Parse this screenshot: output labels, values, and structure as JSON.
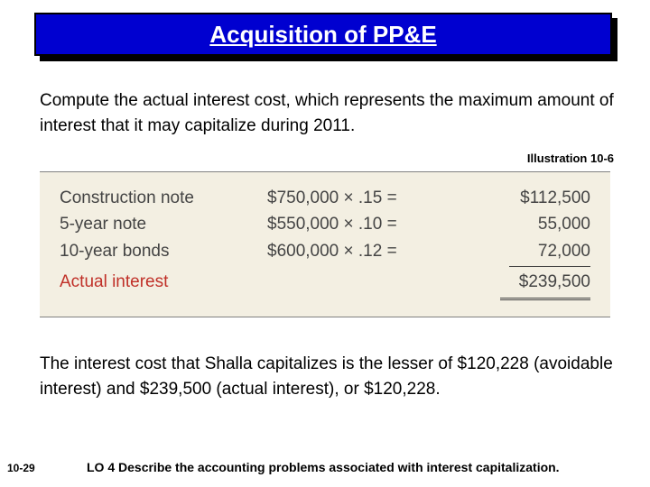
{
  "title": "Acquisition of PP&E",
  "intro": "Compute the actual interest cost, which represents the maximum amount of interest that it may capitalize during 2011.",
  "illustration_label": "Illustration 10-6",
  "table": {
    "background_color": "#f3efe2",
    "text_color": "#444444",
    "accent_color": "#c03028",
    "rows": [
      {
        "label": "Construction note",
        "calc": "$750,000 × .15 =",
        "result": "$112,500"
      },
      {
        "label": "5-year note",
        "calc": "$550,000 × .10 =",
        "result": "55,000"
      },
      {
        "label": "10-year bonds",
        "calc": "$600,000 × .12 =",
        "result": "72,000"
      }
    ],
    "total_label": "Actual interest",
    "total_value": "$239,500"
  },
  "conclusion": "The interest cost that Shalla capitalizes is the lesser of $120,228 (avoidable interest) and $239,500 (actual interest), or $120,228.",
  "footer": {
    "page_ref": "10-29",
    "learning_obj": "LO 4  Describe the accounting problems associated with interest capitalization."
  },
  "colors": {
    "title_bg": "#0000d0",
    "title_fg": "#ffffff",
    "body_fg": "#000000"
  }
}
